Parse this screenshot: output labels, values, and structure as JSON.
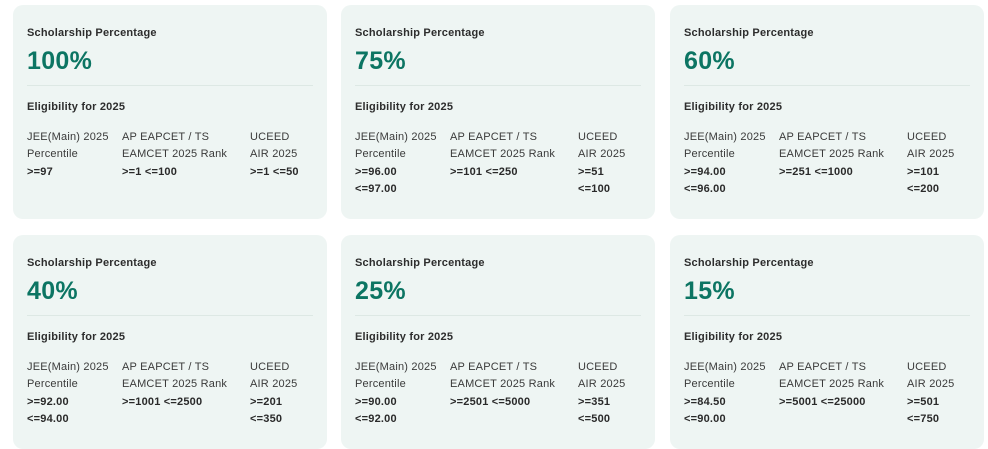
{
  "cards": [
    {
      "section_label": "Scholarship Percentage",
      "percent": "100%",
      "eligibility_label": "Eligibility for 2025",
      "columns": [
        {
          "header": "JEE(Main) 2025\nPercentile",
          "value": ">=97"
        },
        {
          "header": "AP EAPCET / TS\nEAMCET 2025 Rank",
          "value": ">=1 <=100"
        },
        {
          "header": "UCEED\nAIR 2025",
          "value": ">=1 <=50"
        }
      ]
    },
    {
      "section_label": "Scholarship Percentage",
      "percent": "75%",
      "eligibility_label": "Eligibility for 2025",
      "columns": [
        {
          "header": "JEE(Main) 2025\nPercentile",
          "value": ">=96.00\n<=97.00"
        },
        {
          "header": "AP EAPCET / TS\nEAMCET 2025 Rank",
          "value": ">=101 <=250"
        },
        {
          "header": "UCEED\nAIR 2025",
          "value": ">=51\n<=100"
        }
      ]
    },
    {
      "section_label": "Scholarship Percentage",
      "percent": "60%",
      "eligibility_label": "Eligibility for 2025",
      "columns": [
        {
          "header": "JEE(Main) 2025\nPercentile",
          "value": ">=94.00\n<=96.00"
        },
        {
          "header": "AP EAPCET / TS\nEAMCET 2025 Rank",
          "value": ">=251 <=1000"
        },
        {
          "header": "UCEED\nAIR 2025",
          "value": ">=101\n<=200"
        }
      ]
    },
    {
      "section_label": "Scholarship Percentage",
      "percent": "40%",
      "eligibility_label": "Eligibility for 2025",
      "columns": [
        {
          "header": "JEE(Main) 2025\nPercentile",
          "value": ">=92.00\n<=94.00"
        },
        {
          "header": "AP EAPCET / TS\nEAMCET 2025 Rank",
          "value": ">=1001 <=2500"
        },
        {
          "header": "UCEED\nAIR 2025",
          "value": ">=201\n<=350"
        }
      ]
    },
    {
      "section_label": "Scholarship Percentage",
      "percent": "25%",
      "eligibility_label": "Eligibility for 2025",
      "columns": [
        {
          "header": "JEE(Main) 2025\nPercentile",
          "value": ">=90.00\n<=92.00"
        },
        {
          "header": "AP EAPCET / TS\nEAMCET 2025 Rank",
          "value": ">=2501 <=5000"
        },
        {
          "header": "UCEED\nAIR 2025",
          "value": ">=351\n<=500"
        }
      ]
    },
    {
      "section_label": "Scholarship Percentage",
      "percent": "15%",
      "eligibility_label": "Eligibility for 2025",
      "columns": [
        {
          "header": "JEE(Main) 2025\nPercentile",
          "value": ">=84.50\n<=90.00"
        },
        {
          "header": "AP EAPCET / TS\nEAMCET 2025 Rank",
          "value": ">=5001 <=25000"
        },
        {
          "header": "UCEED\nAIR 2025",
          "value": ">=501\n<=750"
        }
      ]
    }
  ],
  "colors": {
    "card_background": "#eef5f3",
    "percent_accent": "#0c7563"
  }
}
